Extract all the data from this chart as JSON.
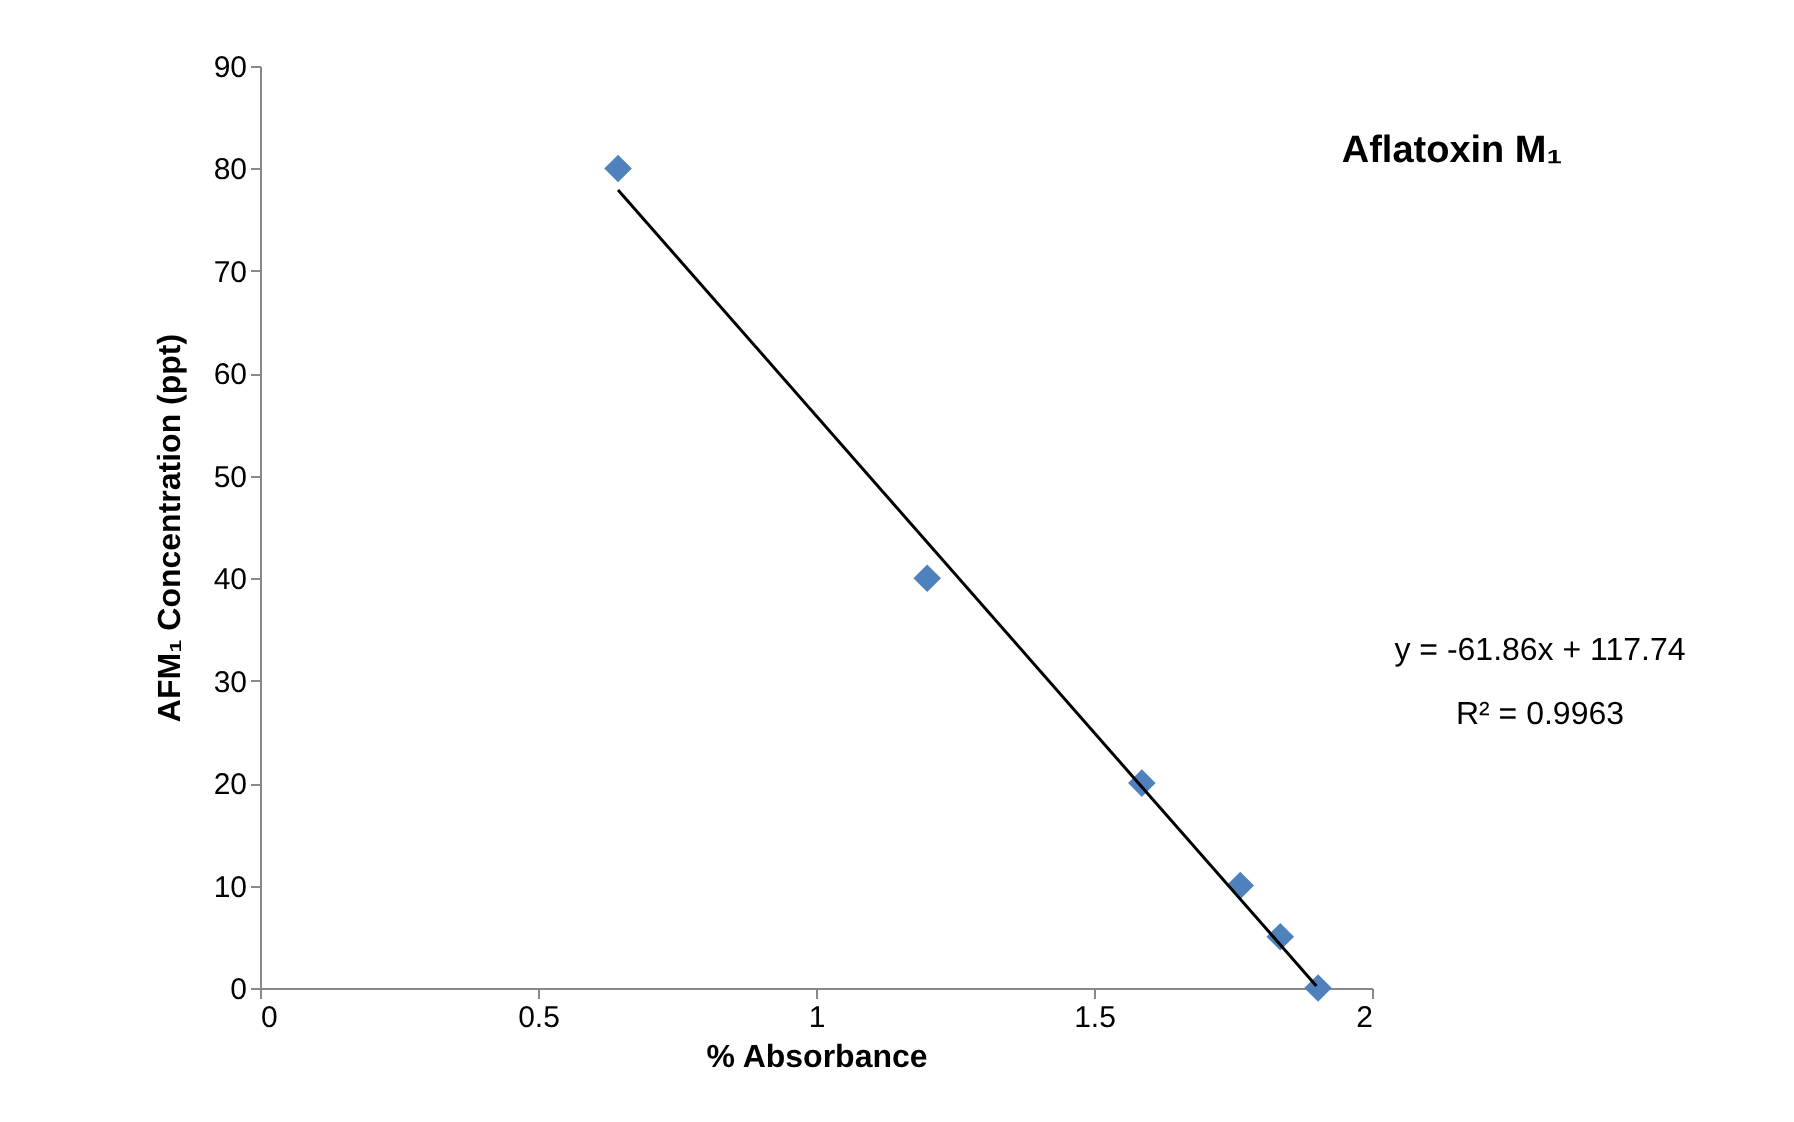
{
  "chart_data": {
    "type": "scatter",
    "title": "Aflatoxin M₁",
    "xlabel": "% Absorbance",
    "ylabel": "AFM₁ Concentration (ppt)",
    "annotations": [
      "y = -61.86x + 117.74",
      "R² = 0.9963"
    ],
    "xlim": [
      0,
      2
    ],
    "xticks": [
      0,
      0.5,
      1,
      1.5,
      2
    ],
    "ylim": [
      0,
      90
    ],
    "yticks": [
      0,
      10,
      20,
      30,
      40,
      50,
      60,
      70,
      80,
      90
    ],
    "grid": false,
    "marker": "diamond",
    "series": [
      {
        "color": "#4f81bd",
        "x": [
          0.644,
          1.2,
          1.586,
          1.763,
          1.835,
          1.903
        ],
        "values": [
          80,
          40,
          20,
          10,
          5,
          0
        ]
      },
      {
        "type": "line",
        "color": "#000000",
        "x": [
          0.644,
          1.9
        ],
        "values": [
          77.9,
          0.2
        ],
        "marker": "none"
      }
    ]
  }
}
